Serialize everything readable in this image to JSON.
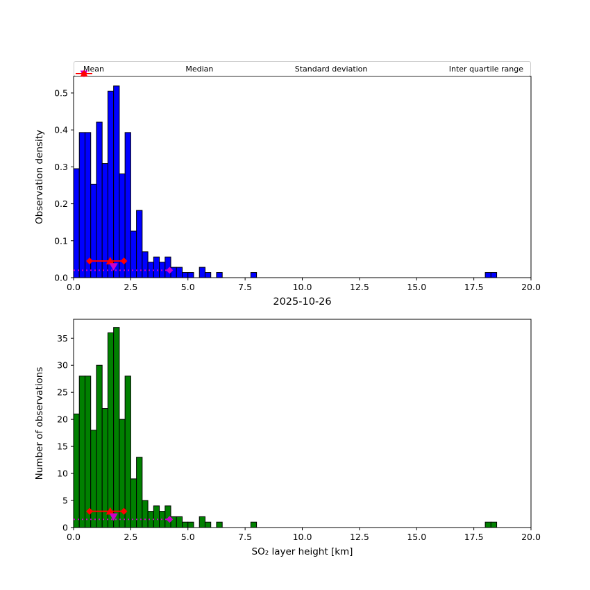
{
  "figure": {
    "date_title": "2025-10-26",
    "x_axis_label": "SO₂ layer height [km]",
    "background": "#ffffff"
  },
  "legend": {
    "items": [
      {
        "label": "Mean",
        "marker": "triangle-down",
        "color": "#cc00cc"
      },
      {
        "label": "Median",
        "marker": "triangle-up",
        "color": "#ff0000"
      },
      {
        "label": "Standard deviation",
        "marker": "diamond-dotted-line",
        "color": "#cc00cc"
      },
      {
        "label": "Inter quartile range",
        "marker": "diamond-solid-line",
        "color": "#ff0000"
      }
    ]
  },
  "chart_data": [
    {
      "type": "bar",
      "title": "",
      "ylabel": "Observation density",
      "xlabel": "",
      "bar_color": "#0000ff",
      "edge_color": "#000000",
      "xlim": [
        0,
        20
      ],
      "ylim": [
        0,
        0.545
      ],
      "bin_width": 0.25,
      "xtick_values": [
        0,
        2.5,
        5,
        7.5,
        10,
        12.5,
        15,
        17.5,
        20
      ],
      "xtick_labels": [
        "0.0",
        "2.5",
        "5.0",
        "7.5",
        "10.0",
        "12.5",
        "15.0",
        "17.5",
        "20.0"
      ],
      "ytick_values": [
        0,
        0.1,
        0.2,
        0.3,
        0.4,
        0.5
      ],
      "ytick_labels": [
        "0.0",
        "0.1",
        "0.2",
        "0.3",
        "0.4",
        "0.5"
      ],
      "bins": [
        0.0,
        0.25,
        0.5,
        0.75,
        1.0,
        1.25,
        1.5,
        1.75,
        2.0,
        2.25,
        2.5,
        2.75,
        3.0,
        3.25,
        3.5,
        3.75,
        4.0,
        4.25,
        4.5,
        4.75,
        5.0,
        5.5,
        5.75,
        6.25,
        7.75,
        18.0,
        18.25
      ],
      "values": [
        0.295,
        0.393,
        0.393,
        0.253,
        0.421,
        0.309,
        0.505,
        0.519,
        0.281,
        0.393,
        0.126,
        0.182,
        0.07,
        0.042,
        0.056,
        0.042,
        0.056,
        0.028,
        0.028,
        0.014,
        0.014,
        0.028,
        0.014,
        0.014,
        0.014,
        0.014,
        0.014
      ],
      "markers": {
        "mean": {
          "x": 1.75,
          "y": 0.03,
          "color": "#cc00cc"
        },
        "median": {
          "x": 1.6,
          "y": 0.045,
          "color": "#ff0000"
        },
        "iqr": {
          "x1": 0.7,
          "x2": 2.2,
          "y": 0.045,
          "color": "#ff0000"
        },
        "std": {
          "x1": 0.0,
          "x2": 4.2,
          "y": 0.02,
          "color": "#cc00cc"
        }
      }
    },
    {
      "type": "bar",
      "title": "2025-10-26",
      "ylabel": "Number of observations",
      "xlabel": "SO₂ layer height [km]",
      "bar_color": "#008000",
      "edge_color": "#000000",
      "xlim": [
        0,
        20
      ],
      "ylim": [
        0,
        38.5
      ],
      "bin_width": 0.25,
      "xtick_values": [
        0,
        2.5,
        5,
        7.5,
        10,
        12.5,
        15,
        17.5,
        20
      ],
      "xtick_labels": [
        "0.0",
        "2.5",
        "5.0",
        "7.5",
        "10.0",
        "12.5",
        "15.0",
        "17.5",
        "20.0"
      ],
      "ytick_values": [
        0,
        5,
        10,
        15,
        20,
        25,
        30,
        35
      ],
      "ytick_labels": [
        "0",
        "5",
        "10",
        "15",
        "20",
        "25",
        "30",
        "35"
      ],
      "bins": [
        0.0,
        0.25,
        0.5,
        0.75,
        1.0,
        1.25,
        1.5,
        1.75,
        2.0,
        2.25,
        2.5,
        2.75,
        3.0,
        3.25,
        3.5,
        3.75,
        4.0,
        4.25,
        4.5,
        4.75,
        5.0,
        5.5,
        5.75,
        6.25,
        7.75,
        18.0,
        18.25
      ],
      "values": [
        21,
        28,
        28,
        18,
        30,
        22,
        36,
        37,
        20,
        28,
        9,
        13,
        5,
        3,
        4,
        3,
        4,
        2,
        2,
        1,
        1,
        2,
        1,
        1,
        1,
        1,
        1
      ],
      "markers": {
        "mean": {
          "x": 1.75,
          "y": 2.0,
          "color": "#cc00cc"
        },
        "median": {
          "x": 1.6,
          "y": 3.0,
          "color": "#ff0000"
        },
        "iqr": {
          "x1": 0.7,
          "x2": 2.2,
          "y": 3.0,
          "color": "#ff0000"
        },
        "std": {
          "x1": 0.0,
          "x2": 4.2,
          "y": 1.5,
          "color": "#cc00cc"
        }
      }
    }
  ]
}
